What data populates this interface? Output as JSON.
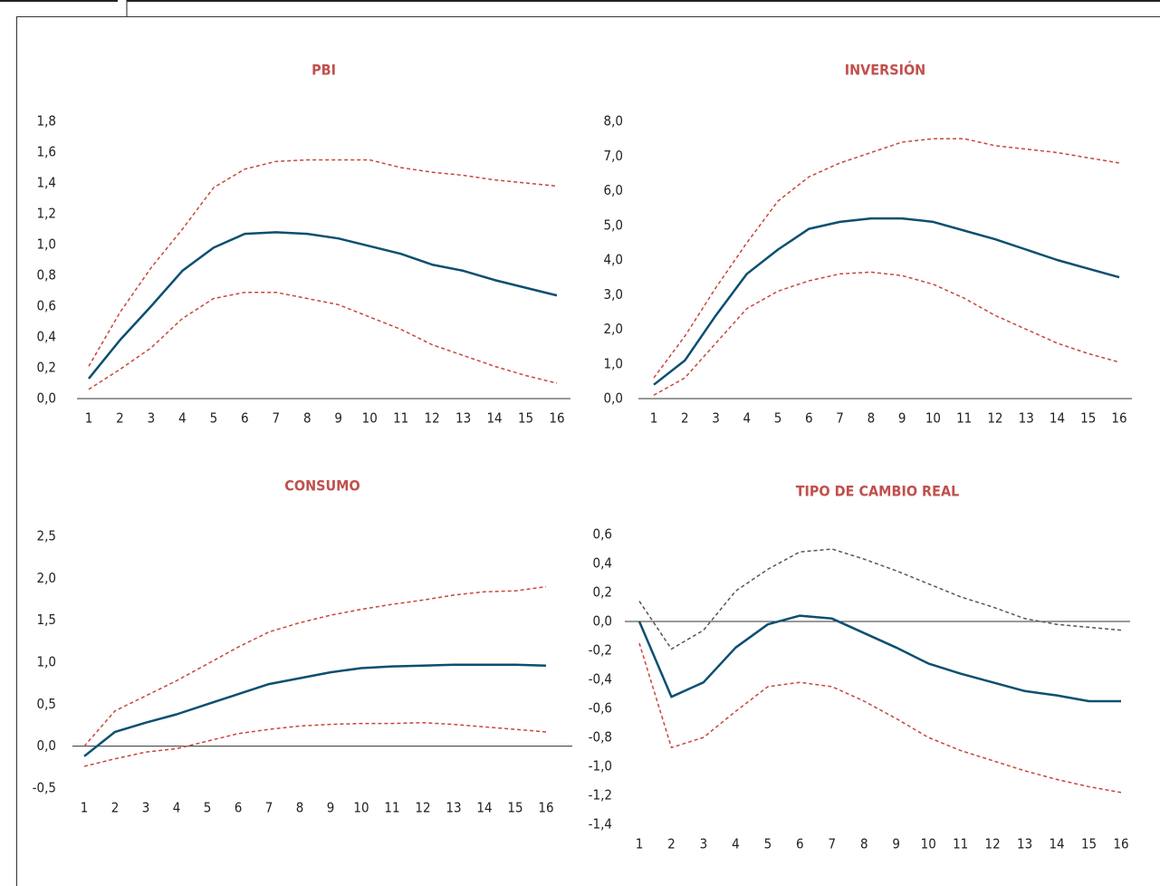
{
  "chart_data": [
    {
      "type": "line",
      "title": "PBI",
      "categories": [
        "1",
        "2",
        "3",
        "4",
        "5",
        "6",
        "7",
        "8",
        "9",
        "10",
        "11",
        "12",
        "13",
        "14",
        "15",
        "16"
      ],
      "ylim": [
        0,
        1.8
      ],
      "yticks": [
        {
          "value": 0,
          "label": "0,0"
        },
        {
          "value": 0.2,
          "label": "0,2"
        },
        {
          "value": 0.4,
          "label": "0,4"
        },
        {
          "value": 0.6,
          "label": "0,6"
        },
        {
          "value": 0.8,
          "label": "0,8"
        },
        {
          "value": 1,
          "label": "1,0"
        },
        {
          "value": 1.2,
          "label": "1,2"
        },
        {
          "value": 1.4,
          "label": "1,4"
        },
        {
          "value": 1.6,
          "label": "1,6"
        },
        {
          "value": 1.8,
          "label": "1,8"
        }
      ],
      "zero_line": true,
      "series": [
        {
          "color": "#c8463b",
          "dashed": true,
          "values": [
            0.21,
            0.56,
            0.85,
            1.1,
            1.37,
            1.49,
            1.54,
            1.55,
            1.55,
            1.55,
            1.5,
            1.47,
            1.45,
            1.42,
            1.4,
            1.38
          ]
        },
        {
          "color": "#c8463b",
          "dashed": true,
          "values": [
            0.06,
            0.19,
            0.33,
            0.52,
            0.65,
            0.69,
            0.69,
            0.65,
            0.61,
            0.53,
            0.45,
            0.35,
            0.28,
            0.21,
            0.15,
            0.1
          ]
        },
        {
          "color": "#0b4f71",
          "dashed": false,
          "values": [
            0.13,
            0.38,
            0.6,
            0.83,
            0.98,
            1.07,
            1.08,
            1.07,
            1.04,
            0.99,
            0.94,
            0.87,
            0.83,
            0.77,
            0.72,
            0.67
          ]
        }
      ]
    },
    {
      "type": "line",
      "title": "INVERSIÓN",
      "categories": [
        "1",
        "2",
        "3",
        "4",
        "5",
        "6",
        "7",
        "8",
        "9",
        "10",
        "11",
        "12",
        "13",
        "14",
        "15",
        "16"
      ],
      "ylim": [
        0,
        8
      ],
      "yticks": [
        {
          "value": 0,
          "label": "0,0"
        },
        {
          "value": 1,
          "label": "1,0"
        },
        {
          "value": 2,
          "label": "2,0"
        },
        {
          "value": 3,
          "label": "3,0"
        },
        {
          "value": 4,
          "label": "4,0"
        },
        {
          "value": 5,
          "label": "5,0"
        },
        {
          "value": 6,
          "label": "6,0"
        },
        {
          "value": 7,
          "label": "7,0"
        },
        {
          "value": 8,
          "label": "8,0"
        }
      ],
      "zero_line": true,
      "series": [
        {
          "color": "#c8463b",
          "dashed": true,
          "values": [
            0.6,
            1.8,
            3.2,
            4.5,
            5.7,
            6.4,
            6.8,
            7.1,
            7.4,
            7.5,
            7.5,
            7.3,
            7.2,
            7.1,
            6.95,
            6.8
          ]
        },
        {
          "color": "#c8463b",
          "dashed": true,
          "values": [
            0.1,
            0.6,
            1.6,
            2.6,
            3.1,
            3.4,
            3.6,
            3.65,
            3.55,
            3.3,
            2.9,
            2.4,
            2.0,
            1.6,
            1.3,
            1.05
          ]
        },
        {
          "color": "#0b4f71",
          "dashed": false,
          "values": [
            0.4,
            1.1,
            2.4,
            3.6,
            4.3,
            4.9,
            5.1,
            5.2,
            5.2,
            5.1,
            4.85,
            4.6,
            4.3,
            4.0,
            3.75,
            3.5
          ]
        }
      ]
    },
    {
      "type": "line",
      "title": "CONSUMO",
      "categories": [
        "1",
        "2",
        "3",
        "4",
        "5",
        "6",
        "7",
        "8",
        "9",
        "10",
        "11",
        "12",
        "13",
        "14",
        "15",
        "16"
      ],
      "ylim": [
        -0.5,
        2.5
      ],
      "yticks": [
        {
          "value": -0.5,
          "label": "-0,5"
        },
        {
          "value": 0,
          "label": "0,0"
        },
        {
          "value": 0.5,
          "label": "0,5"
        },
        {
          "value": 1,
          "label": "1,0"
        },
        {
          "value": 1.5,
          "label": "1,5"
        },
        {
          "value": 2,
          "label": "2,0"
        },
        {
          "value": 2.5,
          "label": "2,5"
        }
      ],
      "zero_line": true,
      "series": [
        {
          "color": "#c8463b",
          "dashed": true,
          "values": [
            0.0,
            0.42,
            0.6,
            0.78,
            0.98,
            1.18,
            1.36,
            1.47,
            1.56,
            1.63,
            1.69,
            1.74,
            1.8,
            1.84,
            1.85,
            1.9
          ]
        },
        {
          "color": "#c8463b",
          "dashed": true,
          "values": [
            -0.24,
            -0.15,
            -0.07,
            -0.03,
            0.06,
            0.15,
            0.2,
            0.24,
            0.26,
            0.27,
            0.27,
            0.28,
            0.26,
            0.23,
            0.2,
            0.17
          ]
        },
        {
          "color": "#0b4f71",
          "dashed": false,
          "values": [
            -0.12,
            0.17,
            0.28,
            0.38,
            0.5,
            0.62,
            0.74,
            0.81,
            0.88,
            0.93,
            0.95,
            0.96,
            0.97,
            0.97,
            0.97,
            0.96
          ]
        }
      ]
    },
    {
      "type": "line",
      "title": "TIPO DE CAMBIO REAL",
      "categories": [
        "1",
        "2",
        "3",
        "4",
        "5",
        "6",
        "7",
        "8",
        "9",
        "10",
        "11",
        "12",
        "13",
        "14",
        "15",
        "16"
      ],
      "ylim": [
        -1.4,
        0.6
      ],
      "yticks": [
        {
          "value": -1.4,
          "label": "-1,4"
        },
        {
          "value": -1.2,
          "label": "-1,2"
        },
        {
          "value": -1,
          "label": "-1,0"
        },
        {
          "value": -0.8,
          "label": "-0,8"
        },
        {
          "value": -0.6,
          "label": "-0,6"
        },
        {
          "value": -0.4,
          "label": "-0,4"
        },
        {
          "value": -0.2,
          "label": "-0,2"
        },
        {
          "value": 0,
          "label": "0,0"
        },
        {
          "value": 0.2,
          "label": "0,2"
        },
        {
          "value": 0.4,
          "label": "0,4"
        },
        {
          "value": 0.6,
          "label": "0,6"
        }
      ],
      "zero_line": true,
      "series": [
        {
          "color": "#555555",
          "dashed": true,
          "values": [
            0.14,
            -0.19,
            -0.06,
            0.21,
            0.36,
            0.48,
            0.5,
            0.43,
            0.35,
            0.26,
            0.17,
            0.1,
            0.02,
            -0.02,
            -0.04,
            -0.06
          ]
        },
        {
          "color": "#c8463b",
          "dashed": true,
          "values": [
            -0.15,
            -0.87,
            -0.8,
            -0.62,
            -0.45,
            -0.42,
            -0.45,
            -0.55,
            -0.67,
            -0.8,
            -0.89,
            -0.96,
            -1.03,
            -1.09,
            -1.14,
            -1.18
          ]
        },
        {
          "color": "#0b4f71",
          "dashed": false,
          "values": [
            0.0,
            -0.52,
            -0.42,
            -0.18,
            -0.02,
            0.04,
            0.02,
            -0.08,
            -0.18,
            -0.29,
            -0.36,
            -0.42,
            -0.48,
            -0.51,
            -0.55,
            -0.55
          ]
        }
      ]
    }
  ]
}
